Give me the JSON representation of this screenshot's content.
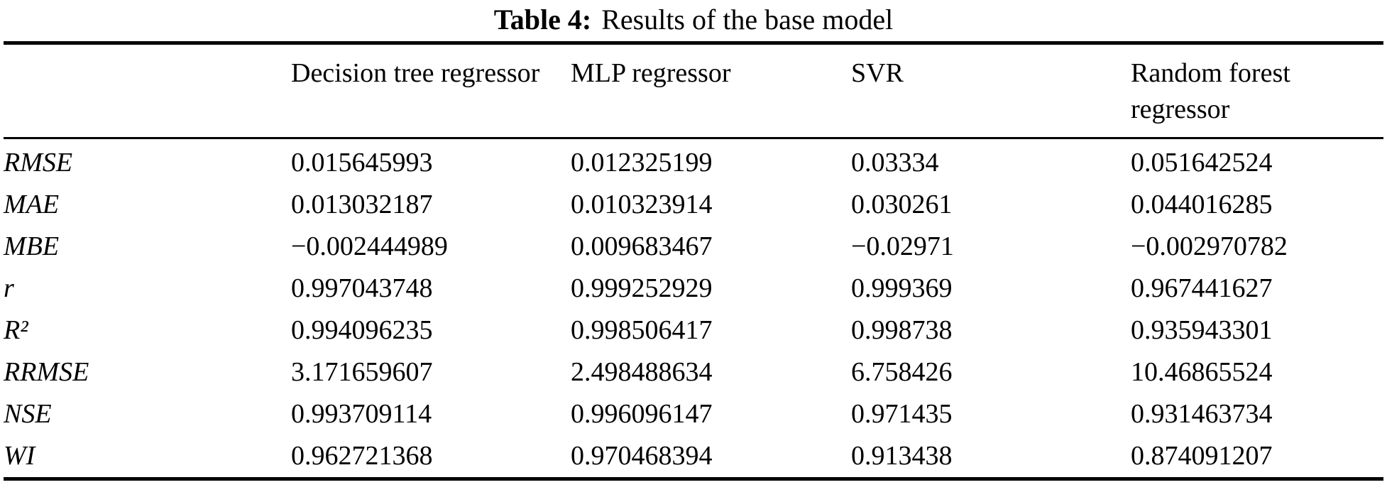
{
  "table": {
    "title_label": "Table 4:",
    "title_text": "Results of the base model",
    "columns": [
      "",
      "Decision tree regressor",
      "MLP regressor",
      "SVR",
      "Random forest regressor"
    ],
    "rows": [
      {
        "metric": "RMSE",
        "values": [
          "0.015645993",
          "0.012325199",
          "0.03334",
          "0.051642524"
        ]
      },
      {
        "metric": "MAE",
        "values": [
          "0.013032187",
          "0.010323914",
          "0.030261",
          "0.044016285"
        ]
      },
      {
        "metric": "MBE",
        "values": [
          "−0.002444989",
          "0.009683467",
          "−0.02971",
          "−0.002970782"
        ]
      },
      {
        "metric": "r",
        "values": [
          "0.997043748",
          "0.999252929",
          "0.999369",
          "0.967441627"
        ]
      },
      {
        "metric": "R²",
        "values": [
          "0.994096235",
          "0.998506417",
          "0.998738",
          "0.935943301"
        ]
      },
      {
        "metric": "RRMSE",
        "values": [
          "3.171659607",
          "2.498488634",
          "6.758426",
          "10.46865524"
        ]
      },
      {
        "metric": "NSE",
        "values": [
          "0.993709114",
          "0.996096147",
          "0.971435",
          "0.931463734"
        ]
      },
      {
        "metric": "WI",
        "values": [
          "0.962721368",
          "0.970468394",
          "0.913438",
          "0.874091207"
        ]
      }
    ]
  }
}
